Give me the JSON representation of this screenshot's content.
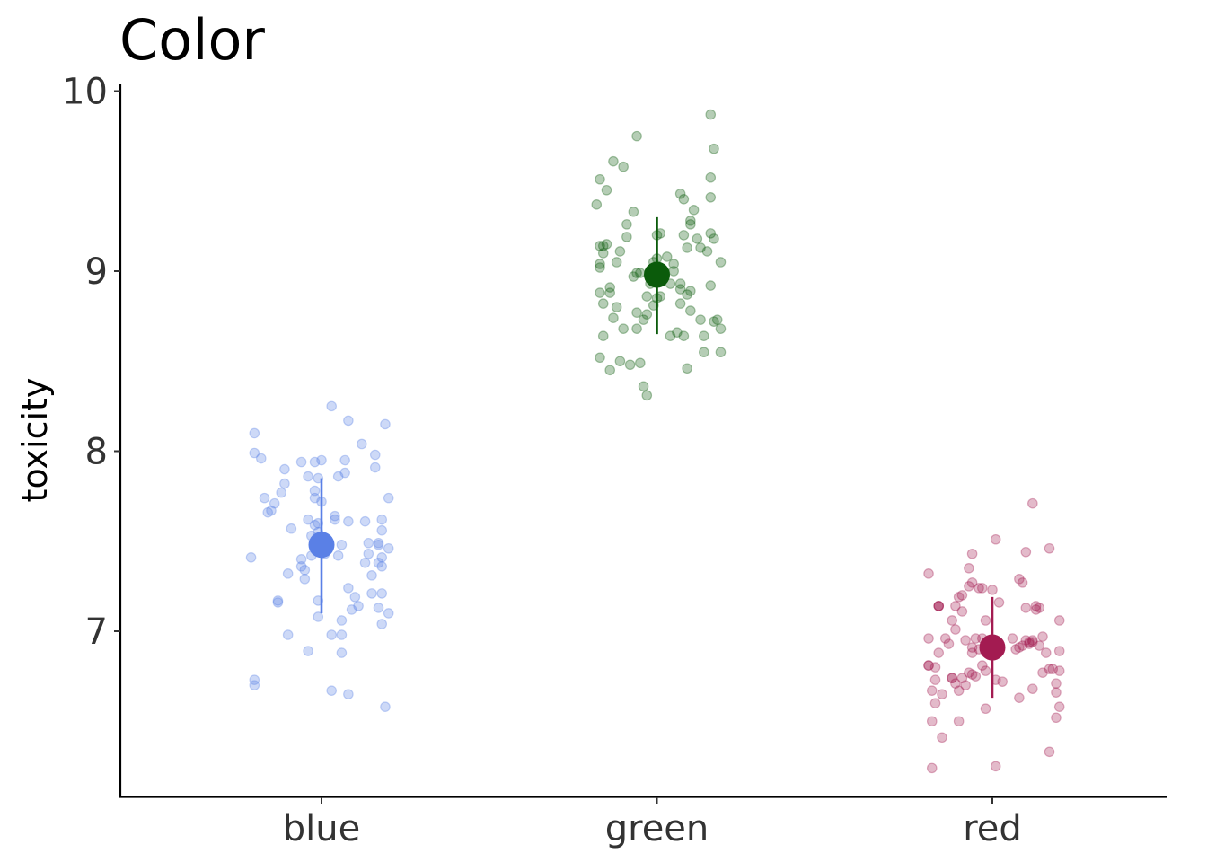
{
  "chart_data": {
    "type": "scatter",
    "title": "Color",
    "xlabel": "",
    "ylabel": "toxicity",
    "categories": [
      "blue",
      "green",
      "red"
    ],
    "yticks": [
      "7",
      "8",
      "9",
      "10"
    ],
    "ylim": [
      6.08,
      10.04
    ],
    "grid": false,
    "legend": "none",
    "series": [
      {
        "category": "blue",
        "color": "#5a80e6",
        "mean": 7.48,
        "lower": 7.1,
        "upper": 7.85,
        "points": [
          [
            -0.2,
            8.1
          ],
          [
            -0.2,
            7.99
          ],
          [
            -0.18,
            7.96
          ],
          [
            -0.16,
            7.66
          ],
          [
            -0.17,
            7.74
          ],
          [
            -0.15,
            7.67
          ],
          [
            -0.14,
            7.71
          ],
          [
            -0.13,
            7.17
          ],
          [
            -0.13,
            7.16
          ],
          [
            -0.21,
            7.41
          ],
          [
            -0.2,
            6.73
          ],
          [
            -0.2,
            6.7
          ],
          [
            -0.12,
            7.77
          ],
          [
            -0.1,
            7.32
          ],
          [
            -0.11,
            7.9
          ],
          [
            -0.11,
            7.82
          ],
          [
            -0.09,
            7.57
          ],
          [
            -0.1,
            6.98
          ],
          [
            -0.06,
            7.94
          ],
          [
            -0.06,
            7.4
          ],
          [
            -0.06,
            7.36
          ],
          [
            -0.05,
            7.34
          ],
          [
            -0.05,
            7.29
          ],
          [
            -0.04,
            7.62
          ],
          [
            -0.04,
            6.89
          ],
          [
            -0.04,
            7.86
          ],
          [
            -0.03,
            7.42
          ],
          [
            -0.03,
            7.53
          ],
          [
            -0.02,
            7.94
          ],
          [
            -0.02,
            7.59
          ],
          [
            -0.02,
            7.78
          ],
          [
            -0.02,
            7.74
          ],
          [
            -0.01,
            7.6
          ],
          [
            -0.01,
            7.55
          ],
          [
            -0.01,
            7.17
          ],
          [
            -0.01,
            7.85
          ],
          [
            -0.01,
            7.08
          ],
          [
            0.0,
            7.95
          ],
          [
            0.0,
            7.72
          ],
          [
            0.01,
            7.43
          ],
          [
            0.03,
            8.25
          ],
          [
            0.03,
            6.98
          ],
          [
            0.03,
            6.67
          ],
          [
            0.04,
            7.64
          ],
          [
            0.04,
            7.62
          ],
          [
            0.05,
            7.42
          ],
          [
            0.05,
            7.86
          ],
          [
            0.06,
            6.88
          ],
          [
            0.06,
            7.48
          ],
          [
            0.06,
            6.98
          ],
          [
            0.06,
            7.06
          ],
          [
            0.07,
            7.95
          ],
          [
            0.07,
            7.88
          ],
          [
            0.08,
            8.17
          ],
          [
            0.08,
            7.61
          ],
          [
            0.08,
            6.65
          ],
          [
            0.08,
            7.24
          ],
          [
            0.09,
            7.12
          ],
          [
            0.1,
            7.19
          ],
          [
            0.11,
            7.14
          ],
          [
            0.12,
            8.04
          ],
          [
            0.13,
            7.61
          ],
          [
            0.13,
            7.38
          ],
          [
            0.14,
            7.43
          ],
          [
            0.14,
            7.49
          ],
          [
            0.15,
            7.21
          ],
          [
            0.15,
            7.31
          ],
          [
            0.16,
            7.98
          ],
          [
            0.16,
            7.91
          ],
          [
            0.17,
            7.48
          ],
          [
            0.17,
            7.38
          ],
          [
            0.17,
            7.13
          ],
          [
            0.17,
            7.49
          ],
          [
            0.18,
            7.36
          ],
          [
            0.18,
            7.41
          ],
          [
            0.18,
            7.62
          ],
          [
            0.18,
            7.56
          ],
          [
            0.18,
            7.04
          ],
          [
            0.18,
            7.21
          ],
          [
            0.19,
            8.15
          ],
          [
            0.19,
            6.58
          ],
          [
            0.2,
            7.46
          ],
          [
            0.2,
            7.74
          ],
          [
            0.2,
            7.1
          ]
        ]
      },
      {
        "category": "green",
        "color": "#0b5b0b",
        "mean": 8.98,
        "lower": 8.65,
        "upper": 9.3,
        "points": [
          [
            -0.18,
            9.37
          ],
          [
            -0.17,
            9.51
          ],
          [
            -0.17,
            9.14
          ],
          [
            -0.17,
            9.04
          ],
          [
            -0.17,
            9.02
          ],
          [
            -0.17,
            8.88
          ],
          [
            -0.17,
            8.52
          ],
          [
            -0.16,
            9.14
          ],
          [
            -0.16,
            9.1
          ],
          [
            -0.16,
            8.82
          ],
          [
            -0.16,
            8.64
          ],
          [
            -0.15,
            9.45
          ],
          [
            -0.15,
            9.15
          ],
          [
            -0.14,
            8.91
          ],
          [
            -0.14,
            8.88
          ],
          [
            -0.14,
            8.45
          ],
          [
            -0.13,
            9.61
          ],
          [
            -0.13,
            8.74
          ],
          [
            -0.12,
            9.05
          ],
          [
            -0.12,
            8.8
          ],
          [
            -0.11,
            9.11
          ],
          [
            -0.11,
            8.5
          ],
          [
            -0.1,
            9.58
          ],
          [
            -0.1,
            8.68
          ],
          [
            -0.09,
            9.26
          ],
          [
            -0.09,
            9.19
          ],
          [
            -0.08,
            8.48
          ],
          [
            -0.07,
            9.33
          ],
          [
            -0.07,
            8.97
          ],
          [
            -0.06,
            9.75
          ],
          [
            -0.06,
            8.99
          ],
          [
            -0.06,
            8.77
          ],
          [
            -0.06,
            8.68
          ],
          [
            -0.05,
            8.99
          ],
          [
            -0.05,
            8.49
          ],
          [
            -0.04,
            8.73
          ],
          [
            -0.04,
            8.36
          ],
          [
            -0.03,
            8.86
          ],
          [
            -0.03,
            8.76
          ],
          [
            -0.03,
            8.31
          ],
          [
            -0.02,
            9.0
          ],
          [
            -0.02,
            8.93
          ],
          [
            -0.01,
            9.05
          ],
          [
            -0.01,
            8.81
          ],
          [
            0.0,
            9.2
          ],
          [
            0.0,
            9.07
          ],
          [
            0.0,
            8.99
          ],
          [
            0.0,
            8.85
          ],
          [
            0.01,
            9.21
          ],
          [
            0.01,
            8.86
          ],
          [
            0.02,
            8.99
          ],
          [
            0.03,
            9.08
          ],
          [
            0.04,
            8.64
          ],
          [
            0.04,
            8.93
          ],
          [
            0.05,
            9.0
          ],
          [
            0.05,
            9.04
          ],
          [
            0.06,
            8.66
          ],
          [
            0.07,
            8.93
          ],
          [
            0.07,
            8.82
          ],
          [
            0.07,
            9.43
          ],
          [
            0.07,
            8.9
          ],
          [
            0.08,
            9.4
          ],
          [
            0.08,
            8.64
          ],
          [
            0.08,
            9.2
          ],
          [
            0.09,
            9.13
          ],
          [
            0.09,
            8.87
          ],
          [
            0.09,
            8.46
          ],
          [
            0.1,
            9.28
          ],
          [
            0.1,
            8.89
          ],
          [
            0.1,
            8.78
          ],
          [
            0.1,
            9.26
          ],
          [
            0.11,
            9.34
          ],
          [
            0.12,
            9.18
          ],
          [
            0.13,
            9.13
          ],
          [
            0.13,
            8.73
          ],
          [
            0.14,
            8.55
          ],
          [
            0.14,
            8.64
          ],
          [
            0.15,
            9.11
          ],
          [
            0.16,
            9.87
          ],
          [
            0.16,
            9.52
          ],
          [
            0.16,
            9.41
          ],
          [
            0.16,
            9.21
          ],
          [
            0.16,
            8.92
          ],
          [
            0.17,
            9.68
          ],
          [
            0.17,
            9.18
          ],
          [
            0.17,
            8.72
          ],
          [
            0.18,
            8.73
          ],
          [
            0.19,
            8.68
          ],
          [
            0.19,
            9.05
          ],
          [
            0.19,
            8.55
          ]
        ]
      },
      {
        "category": "red",
        "color": "#a31b51",
        "mean": 6.91,
        "lower": 6.63,
        "upper": 7.19,
        "points": [
          [
            -0.19,
            6.81
          ],
          [
            -0.19,
            6.81
          ],
          [
            -0.19,
            6.96
          ],
          [
            -0.19,
            7.32
          ],
          [
            -0.18,
            6.67
          ],
          [
            -0.18,
            6.5
          ],
          [
            -0.18,
            6.24
          ],
          [
            -0.17,
            6.8
          ],
          [
            -0.17,
            6.6
          ],
          [
            -0.17,
            6.73
          ],
          [
            -0.16,
            7.14
          ],
          [
            -0.16,
            7.14
          ],
          [
            -0.16,
            6.88
          ],
          [
            -0.16,
            7.14
          ],
          [
            -0.15,
            6.65
          ],
          [
            -0.15,
            6.41
          ],
          [
            -0.14,
            6.96
          ],
          [
            -0.13,
            6.93
          ],
          [
            -0.12,
            7.06
          ],
          [
            -0.12,
            6.74
          ],
          [
            -0.12,
            6.74
          ],
          [
            -0.11,
            6.71
          ],
          [
            -0.11,
            7.01
          ],
          [
            -0.11,
            7.14
          ],
          [
            -0.1,
            6.67
          ],
          [
            -0.1,
            7.19
          ],
          [
            -0.1,
            6.5
          ],
          [
            -0.09,
            7.2
          ],
          [
            -0.09,
            7.11
          ],
          [
            -0.09,
            6.74
          ],
          [
            -0.08,
            6.95
          ],
          [
            -0.08,
            6.7
          ],
          [
            -0.07,
            7.35
          ],
          [
            -0.07,
            7.25
          ],
          [
            -0.07,
            6.77
          ],
          [
            -0.06,
            7.43
          ],
          [
            -0.06,
            7.27
          ],
          [
            -0.06,
            6.91
          ],
          [
            -0.06,
            6.88
          ],
          [
            -0.06,
            6.76
          ],
          [
            -0.05,
            6.96
          ],
          [
            -0.05,
            6.75
          ],
          [
            -0.04,
            6.9
          ],
          [
            -0.04,
            7.24
          ],
          [
            -0.03,
            7.24
          ],
          [
            -0.03,
            6.96
          ],
          [
            -0.03,
            6.81
          ],
          [
            -0.02,
            7.06
          ],
          [
            -0.02,
            6.78
          ],
          [
            -0.02,
            6.57
          ],
          [
            0.0,
            7.23
          ],
          [
            0.0,
            6.95
          ],
          [
            0.01,
            7.51
          ],
          [
            0.01,
            6.73
          ],
          [
            0.01,
            6.25
          ],
          [
            0.02,
            7.16
          ],
          [
            0.03,
            6.72
          ],
          [
            0.06,
            6.96
          ],
          [
            0.07,
            6.9
          ],
          [
            0.08,
            6.91
          ],
          [
            0.08,
            6.63
          ],
          [
            0.08,
            7.29
          ],
          [
            0.09,
            7.27
          ],
          [
            0.09,
            6.92
          ],
          [
            0.1,
            7.44
          ],
          [
            0.1,
            7.13
          ],
          [
            0.1,
            6.95
          ],
          [
            0.11,
            6.93
          ],
          [
            0.11,
            6.94
          ],
          [
            0.12,
            7.71
          ],
          [
            0.12,
            6.95
          ],
          [
            0.12,
            6.94
          ],
          [
            0.12,
            6.68
          ],
          [
            0.13,
            7.12
          ],
          [
            0.13,
            7.14
          ],
          [
            0.14,
            6.92
          ],
          [
            0.14,
            7.13
          ],
          [
            0.15,
            6.97
          ],
          [
            0.15,
            6.77
          ],
          [
            0.16,
            6.88
          ],
          [
            0.17,
            7.46
          ],
          [
            0.17,
            6.33
          ],
          [
            0.17,
            6.79
          ],
          [
            0.18,
            6.79
          ],
          [
            0.19,
            6.71
          ],
          [
            0.19,
            6.66
          ],
          [
            0.19,
            6.52
          ],
          [
            0.2,
            7.06
          ],
          [
            0.2,
            6.89
          ],
          [
            0.2,
            6.78
          ],
          [
            0.2,
            6.58
          ]
        ]
      }
    ]
  }
}
